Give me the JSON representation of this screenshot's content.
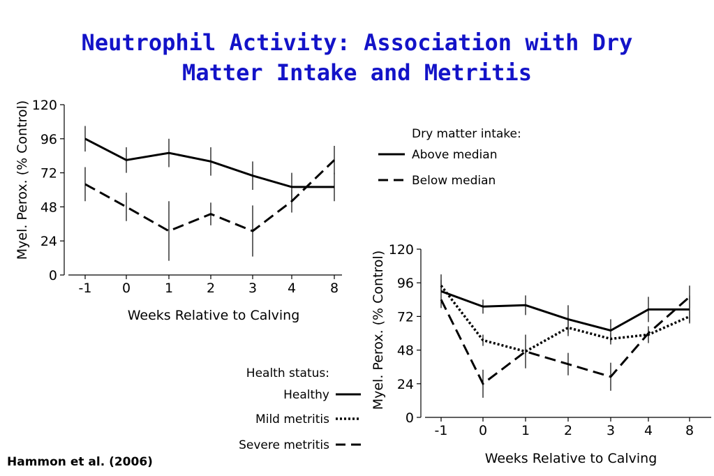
{
  "title_lines": [
    "Neutrophil Activity: Association with Dry",
    "Matter Intake and Metritis"
  ],
  "citation": "Hammon et al. (2006)",
  "colors": {
    "title": "#1313c8",
    "lines": "#000000"
  },
  "chart_data": [
    {
      "type": "line",
      "xlabel": "Weeks Relative to Calving",
      "ylabel": "Myel. Perox. (% Control)",
      "categories": [
        "-1",
        "0",
        "1",
        "2",
        "3",
        "4",
        "8"
      ],
      "yticks": [
        "0",
        "24",
        "48",
        "72",
        "96",
        "120"
      ],
      "ylim": [
        0,
        120
      ],
      "legend": {
        "title": "Dry matter intake:",
        "placement": "top-right"
      },
      "series": [
        {
          "name": "Above median",
          "style": "solid",
          "values": [
            96,
            81,
            86,
            80,
            70,
            62,
            62
          ],
          "err": [
            9,
            9,
            10,
            10,
            10,
            10,
            10
          ]
        },
        {
          "name": "Below median",
          "style": "dashed",
          "values": [
            64,
            48,
            31,
            43,
            31,
            52,
            81
          ],
          "err": [
            12,
            10,
            21,
            8,
            18,
            8,
            10
          ]
        }
      ]
    },
    {
      "type": "line",
      "xlabel": "Weeks Relative to Calving",
      "ylabel": "Myel. Perox. (% Control)",
      "categories": [
        "-1",
        "0",
        "1",
        "2",
        "3",
        "4",
        "8"
      ],
      "yticks": [
        "0",
        "24",
        "48",
        "72",
        "96",
        "120"
      ],
      "ylim": [
        0,
        120
      ],
      "legend": {
        "title": "Health status:",
        "placement": "left"
      },
      "series": [
        {
          "name": "Healthy",
          "style": "solid",
          "values": [
            90,
            79,
            80,
            70,
            62,
            77,
            77
          ],
          "err": [
            12,
            5,
            7,
            10,
            8,
            9,
            10
          ]
        },
        {
          "name": "Mild metritis",
          "style": "dotted",
          "values": [
            94,
            55,
            47,
            64,
            56,
            59,
            72
          ],
          "err": [
            4,
            4,
            12,
            6,
            4,
            6,
            4
          ]
        },
        {
          "name": "Severe metritis",
          "style": "dashed",
          "values": [
            84,
            24,
            47,
            38,
            29,
            60,
            86
          ],
          "err": [
            0,
            10,
            2,
            8,
            10,
            2,
            8
          ]
        }
      ]
    }
  ]
}
